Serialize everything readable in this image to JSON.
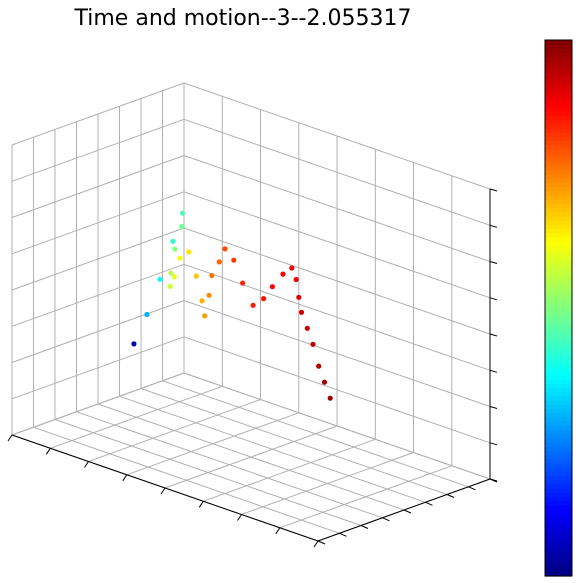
{
  "chart_data": {
    "type": "scatter",
    "title": "Time and motion--3--2.055317",
    "projection": "3d",
    "grid": true,
    "colormap": "jet",
    "colorbar": true,
    "tick_labels_visible": false,
    "xlabel": "",
    "ylabel": "",
    "zlabel": "",
    "xlim": [
      0,
      1
    ],
    "ylim": [
      0,
      1
    ],
    "zlim": [
      0,
      1
    ],
    "clim": [
      0,
      1
    ],
    "series": [
      {
        "x": [
          0.05,
          0.07,
          0.09,
          0.11,
          0.13,
          0.15,
          0.15,
          0.16,
          0.18,
          0.21,
          0.24,
          0.28,
          0.31,
          0.34,
          0.36,
          0.38,
          0.4,
          0.43,
          0.46,
          0.5,
          0.54,
          0.58,
          0.62,
          0.66,
          0.7,
          0.74,
          0.76,
          0.78,
          0.8,
          0.83,
          0.86,
          0.89,
          0.92,
          0.95
        ],
        "y": [
          0.62,
          0.66,
          0.7,
          0.74,
          0.76,
          0.72,
          0.68,
          0.64,
          0.6,
          0.57,
          0.55,
          0.53,
          0.52,
          0.5,
          0.48,
          0.47,
          0.45,
          0.44,
          0.42,
          0.4,
          0.38,
          0.37,
          0.36,
          0.34,
          0.33,
          0.31,
          0.3,
          0.28,
          0.26,
          0.24,
          0.22,
          0.2,
          0.18,
          0.16
        ],
        "z": [
          0.2,
          0.3,
          0.42,
          0.55,
          0.65,
          0.62,
          0.55,
          0.48,
          0.45,
          0.5,
          0.58,
          0.62,
          0.55,
          0.48,
          0.44,
          0.52,
          0.6,
          0.66,
          0.72,
          0.7,
          0.64,
          0.58,
          0.62,
          0.68,
          0.74,
          0.78,
          0.75,
          0.7,
          0.66,
          0.62,
          0.58,
          0.52,
          0.48,
          0.44
        ],
        "c": [
          0.05,
          0.3,
          0.38,
          0.42,
          0.45,
          0.48,
          0.5,
          0.55,
          0.58,
          0.6,
          0.62,
          0.65,
          0.68,
          0.7,
          0.72,
          0.74,
          0.76,
          0.78,
          0.8,
          0.82,
          0.84,
          0.85,
          0.86,
          0.87,
          0.88,
          0.89,
          0.9,
          0.91,
          0.92,
          0.93,
          0.94,
          0.95,
          0.96,
          0.97
        ]
      }
    ]
  }
}
